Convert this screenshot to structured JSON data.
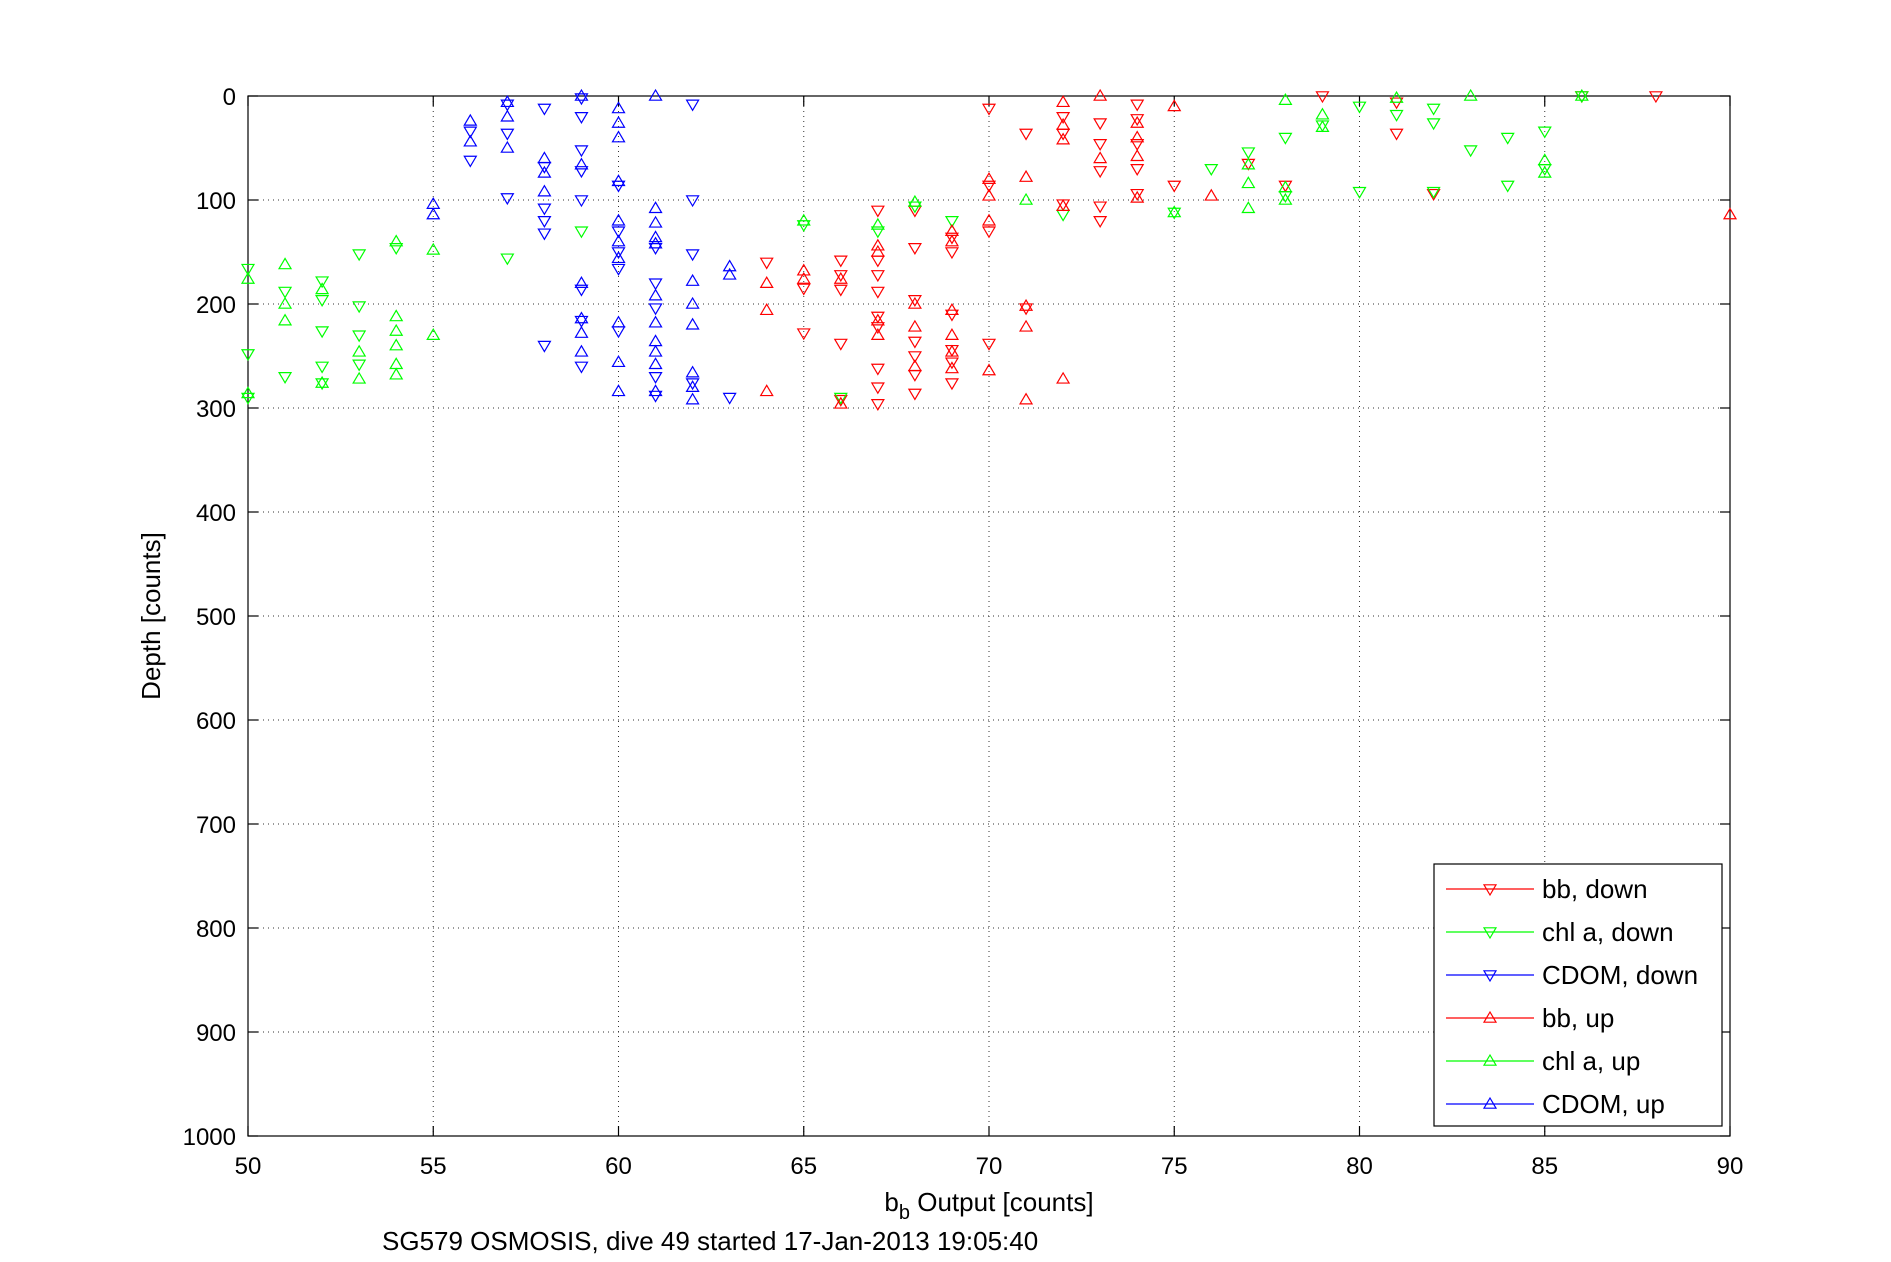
{
  "chart_data": {
    "type": "scatter",
    "xlabel_main": "b",
    "xlabel_sub": "b",
    "xlabel_rest": " Output [counts]",
    "ylabel": "Depth [counts]",
    "caption": "SG579 OSMOSIS, dive 49 started 17-Jan-2013 19:05:40",
    "xlim": [
      50,
      90
    ],
    "ylim": [
      0,
      1000
    ],
    "y_reversed": true,
    "grid": true,
    "x_ticks": [
      "50",
      "55",
      "60",
      "65",
      "70",
      "75",
      "80",
      "85",
      "90"
    ],
    "y_ticks": [
      "0",
      "100",
      "200",
      "300",
      "400",
      "500",
      "600",
      "700",
      "800",
      "900",
      "1000"
    ],
    "legend_position": "lower-right",
    "series": [
      {
        "name": "bb, down",
        "color": "#ff0000",
        "marker": "triangle-down",
        "points": [
          [
            64,
            160
          ],
          [
            65,
            185
          ],
          [
            65,
            228
          ],
          [
            66,
            158
          ],
          [
            66,
            172
          ],
          [
            66,
            186
          ],
          [
            66,
            238
          ],
          [
            66,
            292
          ],
          [
            67,
            110
          ],
          [
            67,
            158
          ],
          [
            67,
            172
          ],
          [
            67,
            188
          ],
          [
            67,
            212
          ],
          [
            67,
            222
          ],
          [
            67,
            262
          ],
          [
            67,
            280
          ],
          [
            67,
            296
          ],
          [
            68,
            110
          ],
          [
            68,
            146
          ],
          [
            68,
            196
          ],
          [
            68,
            236
          ],
          [
            68,
            250
          ],
          [
            68,
            268
          ],
          [
            68,
            286
          ],
          [
            69,
            136
          ],
          [
            69,
            150
          ],
          [
            69,
            210
          ],
          [
            69,
            244
          ],
          [
            69,
            256
          ],
          [
            69,
            276
          ],
          [
            70,
            12
          ],
          [
            70,
            86
          ],
          [
            70,
            130
          ],
          [
            70,
            238
          ],
          [
            71,
            36
          ],
          [
            71,
            204
          ],
          [
            72,
            20
          ],
          [
            72,
            36
          ],
          [
            72,
            104
          ],
          [
            73,
            26
          ],
          [
            73,
            46
          ],
          [
            73,
            72
          ],
          [
            73,
            106
          ],
          [
            73,
            120
          ],
          [
            74,
            8
          ],
          [
            74,
            22
          ],
          [
            74,
            46
          ],
          [
            74,
            70
          ],
          [
            74,
            94
          ],
          [
            75,
            86
          ],
          [
            77,
            65
          ],
          [
            78,
            86
          ],
          [
            79,
            0
          ],
          [
            81,
            6
          ],
          [
            81,
            36
          ],
          [
            82,
            94
          ],
          [
            86,
            0
          ],
          [
            88,
            0
          ]
        ]
      },
      {
        "name": "chl a, down",
        "color": "#00ff00",
        "marker": "triangle-down",
        "points": [
          [
            50,
            166
          ],
          [
            50,
            248
          ],
          [
            50,
            290
          ],
          [
            51,
            188
          ],
          [
            51,
            270
          ],
          [
            52,
            178
          ],
          [
            52,
            196
          ],
          [
            52,
            226
          ],
          [
            52,
            260
          ],
          [
            52,
            276
          ],
          [
            53,
            152
          ],
          [
            53,
            202
          ],
          [
            53,
            230
          ],
          [
            53,
            258
          ],
          [
            54,
            146
          ],
          [
            57,
            156
          ],
          [
            59,
            130
          ],
          [
            65,
            124
          ],
          [
            66,
            290
          ],
          [
            67,
            130
          ],
          [
            68,
            106
          ],
          [
            69,
            120
          ],
          [
            72,
            114
          ],
          [
            75,
            112
          ],
          [
            76,
            70
          ],
          [
            77,
            54
          ],
          [
            78,
            40
          ],
          [
            78,
            96
          ],
          [
            79,
            28
          ],
          [
            80,
            10
          ],
          [
            80,
            92
          ],
          [
            81,
            18
          ],
          [
            82,
            12
          ],
          [
            82,
            26
          ],
          [
            82,
            92
          ],
          [
            83,
            52
          ],
          [
            84,
            40
          ],
          [
            84,
            86
          ],
          [
            85,
            34
          ],
          [
            85,
            70
          ],
          [
            86,
            0
          ]
        ]
      },
      {
        "name": "CDOM, down",
        "color": "#0000ff",
        "marker": "triangle-down",
        "points": [
          [
            56,
            34
          ],
          [
            56,
            62
          ],
          [
            57,
            8
          ],
          [
            57,
            36
          ],
          [
            57,
            98
          ],
          [
            58,
            12
          ],
          [
            58,
            68
          ],
          [
            58,
            108
          ],
          [
            58,
            120
          ],
          [
            58,
            132
          ],
          [
            58,
            240
          ],
          [
            59,
            2
          ],
          [
            59,
            20
          ],
          [
            59,
            52
          ],
          [
            59,
            72
          ],
          [
            59,
            100
          ],
          [
            59,
            186
          ],
          [
            59,
            216
          ],
          [
            59,
            260
          ],
          [
            60,
            86
          ],
          [
            60,
            130
          ],
          [
            60,
            150
          ],
          [
            60,
            166
          ],
          [
            60,
            226
          ],
          [
            61,
            146
          ],
          [
            61,
            180
          ],
          [
            61,
            204
          ],
          [
            61,
            270
          ],
          [
            61,
            288
          ],
          [
            62,
            8
          ],
          [
            62,
            100
          ],
          [
            62,
            152
          ],
          [
            62,
            276
          ],
          [
            63,
            290
          ]
        ]
      },
      {
        "name": "bb, up",
        "color": "#ff0000",
        "marker": "triangle-up",
        "points": [
          [
            64,
            180
          ],
          [
            64,
            206
          ],
          [
            64,
            284
          ],
          [
            65,
            168
          ],
          [
            65,
            176
          ],
          [
            66,
            176
          ],
          [
            66,
            296
          ],
          [
            67,
            144
          ],
          [
            67,
            150
          ],
          [
            67,
            216
          ],
          [
            67,
            230
          ],
          [
            68,
            200
          ],
          [
            68,
            222
          ],
          [
            68,
            260
          ],
          [
            69,
            130
          ],
          [
            69,
            140
          ],
          [
            69,
            206
          ],
          [
            69,
            230
          ],
          [
            69,
            246
          ],
          [
            69,
            262
          ],
          [
            70,
            80
          ],
          [
            70,
            96
          ],
          [
            70,
            120
          ],
          [
            70,
            264
          ],
          [
            71,
            78
          ],
          [
            71,
            202
          ],
          [
            71,
            222
          ],
          [
            71,
            292
          ],
          [
            72,
            6
          ],
          [
            72,
            28
          ],
          [
            72,
            42
          ],
          [
            72,
            106
          ],
          [
            72,
            272
          ],
          [
            73,
            0
          ],
          [
            73,
            60
          ],
          [
            74,
            26
          ],
          [
            74,
            40
          ],
          [
            74,
            58
          ],
          [
            74,
            98
          ],
          [
            75,
            10
          ],
          [
            76,
            96
          ],
          [
            90,
            114
          ]
        ]
      },
      {
        "name": "chl a, up",
        "color": "#00ff00",
        "marker": "triangle-up",
        "points": [
          [
            50,
            176
          ],
          [
            50,
            286
          ],
          [
            51,
            162
          ],
          [
            51,
            200
          ],
          [
            51,
            216
          ],
          [
            52,
            186
          ],
          [
            52,
            276
          ],
          [
            53,
            246
          ],
          [
            53,
            272
          ],
          [
            54,
            140
          ],
          [
            54,
            212
          ],
          [
            54,
            226
          ],
          [
            54,
            240
          ],
          [
            54,
            258
          ],
          [
            54,
            268
          ],
          [
            55,
            148
          ],
          [
            55,
            230
          ],
          [
            65,
            120
          ],
          [
            67,
            124
          ],
          [
            68,
            102
          ],
          [
            71,
            100
          ],
          [
            75,
            112
          ],
          [
            77,
            66
          ],
          [
            77,
            84
          ],
          [
            77,
            108
          ],
          [
            78,
            4
          ],
          [
            78,
            88
          ],
          [
            78,
            100
          ],
          [
            79,
            18
          ],
          [
            79,
            30
          ],
          [
            81,
            2
          ],
          [
            83,
            0
          ],
          [
            85,
            62
          ],
          [
            85,
            74
          ],
          [
            86,
            0
          ]
        ]
      },
      {
        "name": "CDOM, up",
        "color": "#0000ff",
        "marker": "triangle-up",
        "points": [
          [
            55,
            104
          ],
          [
            55,
            114
          ],
          [
            56,
            24
          ],
          [
            56,
            44
          ],
          [
            57,
            6
          ],
          [
            57,
            20
          ],
          [
            57,
            50
          ],
          [
            58,
            60
          ],
          [
            58,
            74
          ],
          [
            58,
            92
          ],
          [
            59,
            0
          ],
          [
            59,
            66
          ],
          [
            59,
            180
          ],
          [
            59,
            214
          ],
          [
            59,
            228
          ],
          [
            59,
            246
          ],
          [
            60,
            12
          ],
          [
            60,
            26
          ],
          [
            60,
            40
          ],
          [
            60,
            82
          ],
          [
            60,
            120
          ],
          [
            60,
            140
          ],
          [
            60,
            156
          ],
          [
            60,
            218
          ],
          [
            60,
            256
          ],
          [
            60,
            284
          ],
          [
            61,
            0
          ],
          [
            61,
            108
          ],
          [
            61,
            122
          ],
          [
            61,
            136
          ],
          [
            61,
            142
          ],
          [
            61,
            192
          ],
          [
            61,
            218
          ],
          [
            61,
            236
          ],
          [
            61,
            246
          ],
          [
            61,
            258
          ],
          [
            61,
            284
          ],
          [
            62,
            178
          ],
          [
            62,
            200
          ],
          [
            62,
            220
          ],
          [
            62,
            266
          ],
          [
            62,
            280
          ],
          [
            62,
            292
          ],
          [
            63,
            164
          ],
          [
            63,
            172
          ]
        ]
      }
    ]
  }
}
